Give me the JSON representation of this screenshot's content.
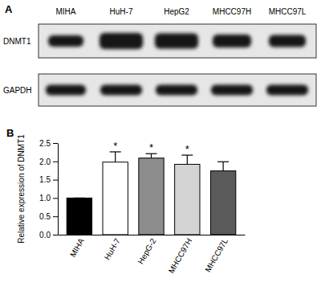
{
  "chart_data": {
    "type": "bar",
    "panel_label": "B",
    "categories": [
      "MIHA",
      "HuH-7",
      "HepG-2",
      "MHCC97H",
      "MHCC97L"
    ],
    "values": [
      1.0,
      1.98,
      2.09,
      1.92,
      1.74
    ],
    "errors": [
      0,
      0.28,
      0.12,
      0.25,
      0.25
    ],
    "significance": [
      null,
      "*",
      "*",
      "*",
      null
    ],
    "colors": [
      "#000000",
      "#ffffff",
      "#8c8c8c",
      "#d4d4d4",
      "#5a5a5a"
    ],
    "y_label": "Relative expression of DNMT1",
    "ylim": [
      0,
      2.5
    ],
    "yticks": [
      {
        "value": 0,
        "label": "0.0"
      },
      {
        "value": 0.5,
        "label": "0.5"
      },
      {
        "value": 1,
        "label": "1.0"
      },
      {
        "value": 1.5,
        "label": "1.5"
      },
      {
        "value": 2,
        "label": "2.0"
      },
      {
        "value": 2.5,
        "label": "2.5"
      }
    ],
    "grid": false
  },
  "blot": {
    "panel_label": "A",
    "lanes": [
      "MIHA",
      "HuH-7",
      "HepG2",
      "MHCC97H",
      "MHCC97L"
    ],
    "rows": [
      "DNMT1",
      "GAPDH"
    ]
  }
}
